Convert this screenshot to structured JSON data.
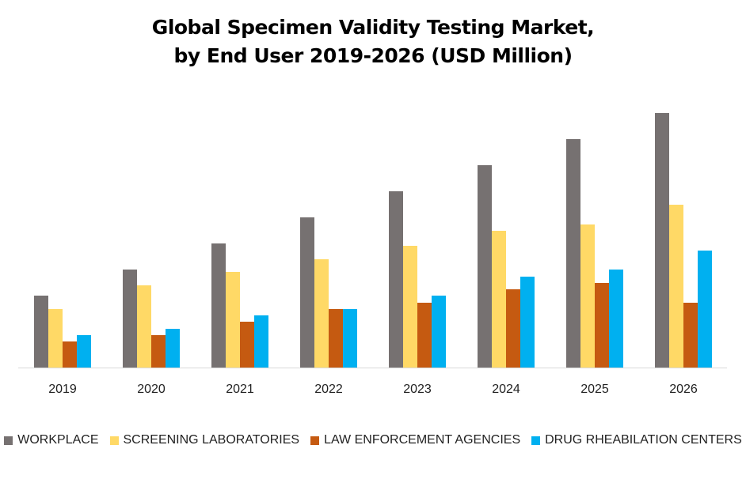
{
  "chart_data": {
    "type": "bar",
    "title_line1": "Global Specimen Validity Testing Market,",
    "title_line2": "by End User 2019-2026 (USD Million)",
    "categories": [
      "2019",
      "2020",
      "2021",
      "2022",
      "2023",
      "2024",
      "2025",
      "2026"
    ],
    "series": [
      {
        "name": "WORKPLACE",
        "color": "#767171",
        "values": [
          91,
          124,
          157,
          190,
          223,
          256,
          289,
          322
        ]
      },
      {
        "name": "SCREENING LABORATORIES",
        "color": "#FFD966",
        "values": [
          74,
          104,
          121,
          137,
          154,
          173,
          181,
          206
        ]
      },
      {
        "name": "LAW ENFORCEMENT AGENCIES",
        "color": "#C55A11",
        "values": [
          33,
          41,
          58,
          74,
          82,
          99,
          107,
          82
        ]
      },
      {
        "name": "DRUG RHEABILATION CENTERS",
        "color": "#00B0F0",
        "values": [
          41,
          49,
          66,
          74,
          91,
          115,
          124,
          148
        ]
      }
    ],
    "ylim": [
      0,
      350
    ],
    "y_axis_shown": false,
    "grid": false,
    "legend": "bottom"
  }
}
